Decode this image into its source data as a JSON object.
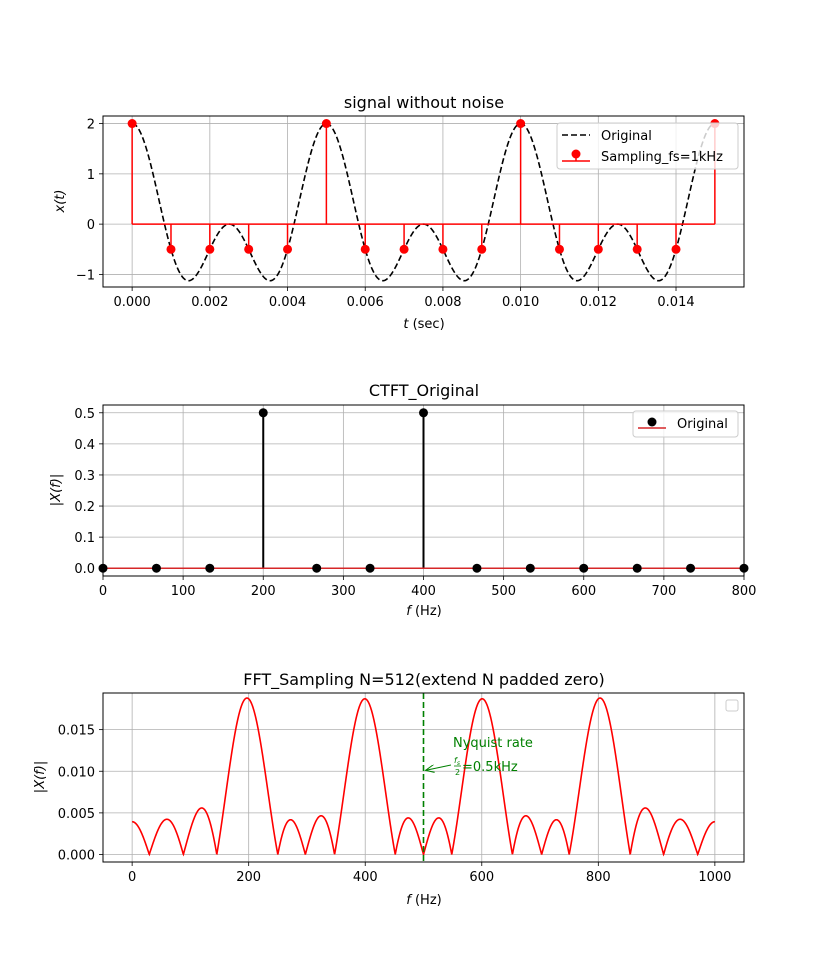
{
  "chart_data": [
    {
      "type": "line",
      "title": "signal without noise",
      "xlabel_main": "t",
      "xlabel_unit": " (sec)",
      "ylabel_main": "x(t)",
      "xlim": [
        -0.00075,
        0.01575
      ],
      "ylim": [
        -1.25,
        2.15
      ],
      "xticks": [
        0,
        0.002,
        0.004,
        0.006,
        0.008,
        0.01,
        0.012,
        0.014
      ],
      "xtick_labels": [
        "0.000",
        "0.002",
        "0.004",
        "0.006",
        "0.008",
        "0.010",
        "0.012",
        "0.014"
      ],
      "yticks": [
        -1,
        0,
        1,
        2
      ],
      "ytick_labels": [
        "−1",
        "0",
        "1",
        "2"
      ],
      "grid": true,
      "legend_position": "top-right",
      "series": [
        {
          "name": "Original",
          "style": "dashed-line",
          "color": "#000000",
          "formula": "cos(2*pi*200*t) + cos(2*pi*400*t)",
          "t_range": [
            0,
            0.015
          ]
        },
        {
          "name": "Sampling_fs=1kHz",
          "style": "stem",
          "color": "#ff0000",
          "x": [
            0,
            0.001,
            0.002,
            0.003,
            0.004,
            0.005,
            0.006,
            0.007,
            0.008,
            0.009,
            0.01,
            0.011,
            0.012,
            0.013,
            0.014,
            0.015
          ],
          "y": [
            2,
            -0.5,
            -0.5,
            -0.5,
            -0.5,
            2,
            -0.5,
            -0.5,
            -0.5,
            -0.5,
            2,
            -0.5,
            -0.5,
            -0.5,
            -0.5,
            2
          ]
        }
      ]
    },
    {
      "type": "stem",
      "title": "CTFT_Original",
      "xlabel_main": "f",
      "xlabel_unit": " (Hz)",
      "ylabel_main": "|X(f)|",
      "xlim": [
        0,
        800
      ],
      "ylim": [
        -0.025,
        0.525
      ],
      "xticks": [
        0,
        100,
        200,
        300,
        400,
        500,
        600,
        700,
        800
      ],
      "xtick_labels": [
        "0",
        "100",
        "200",
        "300",
        "400",
        "500",
        "600",
        "700",
        "800"
      ],
      "yticks": [
        0,
        0.1,
        0.2,
        0.3,
        0.4,
        0.5
      ],
      "ytick_labels": [
        "0.0",
        "0.1",
        "0.2",
        "0.3",
        "0.4",
        "0.5"
      ],
      "grid": true,
      "legend_position": "top-right",
      "series": [
        {
          "name": "Original",
          "marker_color": "#000000",
          "baseline_color": "#d62728",
          "x": [
            0,
            66.7,
            133.3,
            200,
            266.7,
            333.3,
            400,
            466.7,
            533.3,
            600,
            666.7,
            733.3,
            800
          ],
          "y": [
            0,
            0,
            0,
            0.5,
            0,
            0,
            0.5,
            0,
            0,
            0,
            0,
            0,
            0
          ]
        }
      ]
    },
    {
      "type": "line",
      "title": "FFT_Sampling N=512(extend N padded zero)",
      "xlabel_main": "f",
      "xlabel_unit": " (Hz)",
      "ylabel_main": "|X(f)|",
      "xlim": [
        -50,
        1050
      ],
      "ylim": [
        -0.0009,
        0.0194
      ],
      "xticks": [
        0,
        200,
        400,
        600,
        800,
        1000
      ],
      "xtick_labels": [
        "0",
        "200",
        "400",
        "600",
        "800",
        "1000"
      ],
      "yticks": [
        0,
        0.005,
        0.01,
        0.015
      ],
      "ytick_labels": [
        "0.000",
        "0.005",
        "0.010",
        "0.015"
      ],
      "grid": true,
      "legend_position": "top-right",
      "series": [
        {
          "name": "",
          "color": "#ff0000",
          "formula": "|Σ_{n=0..15} x[n]·e^{-j2πfn/1000}| / 1700",
          "peaks": [
            {
              "x": 200,
              "y": 0.0187
            },
            {
              "x": 400,
              "y": 0.0187
            },
            {
              "x": 600,
              "y": 0.0187
            },
            {
              "x": 800,
              "y": 0.0187
            }
          ],
          "f_range": [
            0,
            1000
          ]
        }
      ],
      "annotation": {
        "line1": "Nyquist rate",
        "frac_num": "f",
        "frac_num_sub": "s",
        "frac_den": "2",
        "line2_rest": "=0.5kHz",
        "arrow_to_x": 500,
        "arrow_to_y": 0.0101,
        "vline_x": 500,
        "color": "#008000"
      }
    }
  ]
}
